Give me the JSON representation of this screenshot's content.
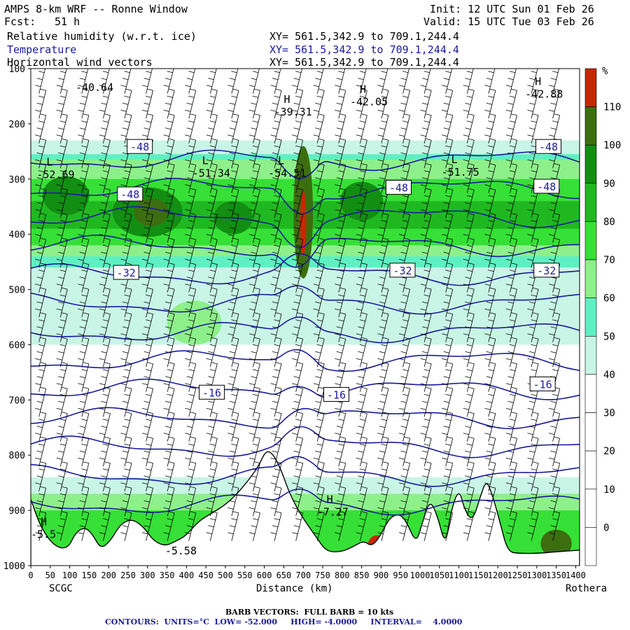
{
  "header": {
    "title": "AMPS 8-km WRF -- Ronne Window",
    "fcst_label": "Fcst:",
    "fcst_value": "51 h",
    "init": "Init: 12 UTC Sun 01 Feb 26",
    "valid": "Valid: 15 UTC Tue 03 Feb 26",
    "fields": [
      {
        "name": "Relative humidity (w.r.t. ice)",
        "xy": "XY= 561.5,342.9 to 709.1,244.4"
      },
      {
        "name": "Temperature",
        "xy": "XY= 561.5,342.9 to 709.1,244.4"
      },
      {
        "name": "Horizontal wind vectors",
        "xy": "XY= 561.5,342.9 to 709.1,244.4"
      }
    ]
  },
  "colors": {
    "contour": "#1a1a9c",
    "rh_scale": [
      "#ffffff",
      "#ffffff",
      "#ffffff",
      "#c8f5e6",
      "#5ef0c2",
      "#8ef08a",
      "#36e036",
      "#20b820",
      "#128e12",
      "#3c6e10",
      "#c82800"
    ]
  },
  "chart_data": {
    "type": "heatmap",
    "xlabel": "Distance (km)",
    "ylabel": "",
    "x_ticks": [
      0,
      50,
      100,
      150,
      200,
      250,
      300,
      350,
      400,
      450,
      500,
      550,
      600,
      650,
      700,
      750,
      800,
      850,
      900,
      950,
      1000,
      1050,
      1100,
      1150,
      1200,
      1250,
      1300,
      1350,
      1400
    ],
    "xlim": [
      0,
      1410
    ],
    "ylim": [
      1000,
      100
    ],
    "y_ticks": [
      100,
      200,
      300,
      400,
      500,
      600,
      700,
      800,
      900,
      1000
    ],
    "left_endpoint": "SCGC",
    "right_endpoint": "Rothera",
    "colorbar": {
      "unit": "%",
      "ticks": [
        110,
        100,
        90,
        80,
        70,
        60,
        50,
        40,
        30,
        20,
        10,
        0
      ]
    },
    "temperature_contours": [
      -52,
      -48,
      -44,
      -40,
      -36,
      -32,
      -28,
      -24,
      -20,
      -16,
      -12,
      -8,
      -4
    ],
    "contour_labels": [
      {
        "x": 280,
        "p": 241,
        "text": "-48"
      },
      {
        "x": 1330,
        "p": 241,
        "text": "-48"
      },
      {
        "x": 255,
        "p": 327,
        "text": "-48"
      },
      {
        "x": 945,
        "p": 315,
        "text": "-48"
      },
      {
        "x": 1325,
        "p": 313,
        "text": "-48"
      },
      {
        "x": 245,
        "p": 469,
        "text": "-32"
      },
      {
        "x": 955,
        "p": 465,
        "text": "-32"
      },
      {
        "x": 1325,
        "p": 465,
        "text": "-32"
      },
      {
        "x": 465,
        "p": 686,
        "text": "-16"
      },
      {
        "x": 785,
        "p": 690,
        "text": "-16"
      },
      {
        "x": 1315,
        "p": 671,
        "text": "-16"
      }
    ],
    "extrema": [
      {
        "x": 115,
        "p": 128,
        "type": "",
        "text": "-40.64"
      },
      {
        "x": 625,
        "p": 172,
        "type": "H",
        "text": "-39.31"
      },
      {
        "x": 820,
        "p": 154,
        "type": "H",
        "text": "-42.05"
      },
      {
        "x": 1270,
        "p": 140,
        "type": "H",
        "text": "-42.88"
      },
      {
        "x": 15,
        "p": 286,
        "type": "L",
        "text": "-52.69"
      },
      {
        "x": 415,
        "p": 283,
        "type": "L",
        "text": "-51.34"
      },
      {
        "x": 610,
        "p": 283,
        "type": "L",
        "text": "-54.51"
      },
      {
        "x": 1055,
        "p": 281,
        "type": "L",
        "text": "-51.75"
      },
      {
        "x": 735,
        "p": 897,
        "type": "H",
        "text": "-7.27"
      },
      {
        "x": 0,
        "p": 937,
        "type": "H",
        "text": "-5.5"
      },
      {
        "x": 345,
        "p": 967,
        "type": "",
        "text": "-5.58"
      }
    ],
    "legend_note": "BARB VECTORS:  FULL BARB = 10 kts",
    "contour_info": "CONTOURS:  UNITS=°C  LOW= -52.000     HIGH= -4.0000     INTERVAL=    4.0000",
    "grid": false
  }
}
